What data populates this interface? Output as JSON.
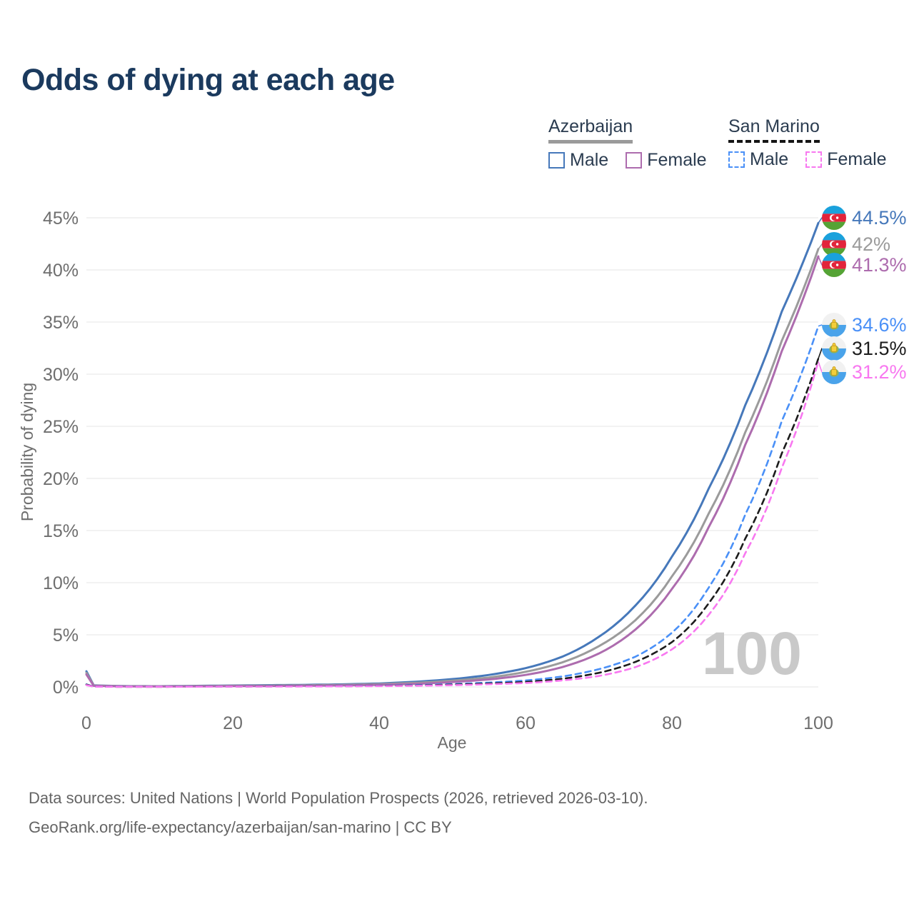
{
  "title": "Odds of dying at each age",
  "watermark": "100",
  "legend": {
    "groups": [
      {
        "label": "Azerbaijan",
        "line_style": "solid",
        "underline_color": "#9a9a9a",
        "items": [
          {
            "label": "Male",
            "color": "#4678ba"
          },
          {
            "label": "Female",
            "color": "#ad6cae"
          }
        ]
      },
      {
        "label": "San Marino",
        "line_style": "dashed",
        "underline_color": "#151515",
        "items": [
          {
            "label": "Male",
            "color": "#4a90f7"
          },
          {
            "label": "Female",
            "color": "#f878f0"
          }
        ]
      }
    ]
  },
  "axes": {
    "x": {
      "title": "Age",
      "tick_values": [
        0,
        20,
        40,
        60,
        80,
        100
      ],
      "tick_labels": [
        "0",
        "20",
        "40",
        "60",
        "80",
        "100"
      ]
    },
    "y": {
      "title": "Probability of dying",
      "tick_values": [
        0,
        5,
        10,
        15,
        20,
        25,
        30,
        35,
        40,
        45
      ],
      "tick_labels": [
        "0%",
        "5%",
        "10%",
        "15%",
        "20%",
        "25%",
        "30%",
        "35%",
        "40%",
        "45%"
      ]
    }
  },
  "end_labels": [
    {
      "value": "44.5%",
      "color": "#4678ba",
      "flag": "azerbaijan-flag",
      "series": "Azerbaijan Male"
    },
    {
      "value": "42%",
      "color": "#9b9b9b",
      "flag": "azerbaijan-flag",
      "series": "Azerbaijan"
    },
    {
      "value": "41.3%",
      "color": "#ad6cae",
      "flag": "azerbaijan-flag",
      "series": "Azerbaijan Female"
    },
    {
      "value": "34.6%",
      "color": "#4a90f7",
      "flag": "san-marino-flag",
      "series": "San Marino Male"
    },
    {
      "value": "31.5%",
      "color": "#1c1c1c",
      "flag": "san-marino-flag",
      "series": "San Marino"
    },
    {
      "value": "31.2%",
      "color": "#f878f0",
      "flag": "san-marino-flag",
      "series": "San Marino Female"
    }
  ],
  "footer": {
    "line1": "Data sources: United Nations | World Population Prospects (2026, retrieved 2026-03-10).",
    "line2": "GeoRank.org/life-expectancy/azerbaijan/san-marino | CC BY"
  },
  "chart_data": {
    "type": "line",
    "title": "Odds of dying at each age",
    "xlabel": "Age",
    "ylabel": "Probability of dying",
    "xlim": [
      0,
      100
    ],
    "ylim": [
      0,
      45
    ],
    "grid": true,
    "legend_position": "top-right",
    "x": [
      0,
      1,
      5,
      10,
      15,
      20,
      25,
      30,
      35,
      40,
      45,
      50,
      55,
      60,
      65,
      70,
      75,
      80,
      85,
      90,
      95,
      100
    ],
    "series": [
      {
        "id": "azerbaijan-male",
        "name": "Azerbaijan Male",
        "color": "#4678ba",
        "dashed": false,
        "end_label": "44.5%",
        "values": [
          1.5,
          0.15,
          0.08,
          0.07,
          0.1,
          0.14,
          0.17,
          0.2,
          0.25,
          0.33,
          0.5,
          0.75,
          1.15,
          1.8,
          2.9,
          4.8,
          7.8,
          12.5,
          19.0,
          27.0,
          36.0,
          44.5
        ]
      },
      {
        "id": "azerbaijan-both",
        "name": "Azerbaijan (both sexes)",
        "color": "#9b9b9b",
        "dashed": false,
        "end_label": "42%",
        "values": [
          1.35,
          0.13,
          0.07,
          0.06,
          0.08,
          0.11,
          0.13,
          0.16,
          0.2,
          0.27,
          0.4,
          0.6,
          0.9,
          1.45,
          2.35,
          3.9,
          6.4,
          10.6,
          16.6,
          24.4,
          33.2,
          42.0
        ]
      },
      {
        "id": "azerbaijan-female",
        "name": "Azerbaijan Female",
        "color": "#ad6cae",
        "dashed": false,
        "end_label": "41.3%",
        "values": [
          1.2,
          0.11,
          0.06,
          0.05,
          0.06,
          0.08,
          0.09,
          0.12,
          0.15,
          0.2,
          0.3,
          0.47,
          0.72,
          1.15,
          1.9,
          3.2,
          5.5,
          9.4,
          15.3,
          23.2,
          32.2,
          41.3
        ]
      },
      {
        "id": "san-marino-male",
        "name": "San Marino Male",
        "color": "#4a90f7",
        "dashed": true,
        "end_label": "34.6%",
        "values": [
          0.25,
          0.03,
          0.02,
          0.02,
          0.03,
          0.05,
          0.06,
          0.07,
          0.09,
          0.12,
          0.18,
          0.28,
          0.42,
          0.62,
          1.0,
          1.7,
          2.9,
          5.2,
          9.5,
          16.5,
          25.5,
          34.6
        ]
      },
      {
        "id": "san-marino-both",
        "name": "San Marino (both sexes)",
        "color": "#1c1c1c",
        "dashed": true,
        "end_label": "31.5%",
        "values": [
          0.22,
          0.025,
          0.015,
          0.015,
          0.025,
          0.04,
          0.05,
          0.06,
          0.07,
          0.1,
          0.14,
          0.22,
          0.33,
          0.48,
          0.78,
          1.35,
          2.4,
          4.3,
          8.0,
          14.2,
          22.4,
          31.5
        ]
      },
      {
        "id": "san-marino-female",
        "name": "San Marino Female",
        "color": "#f878f0",
        "dashed": true,
        "end_label": "31.2%",
        "values": [
          0.18,
          0.02,
          0.012,
          0.012,
          0.02,
          0.03,
          0.035,
          0.045,
          0.06,
          0.08,
          0.11,
          0.17,
          0.26,
          0.38,
          0.62,
          1.05,
          1.9,
          3.6,
          6.9,
          12.8,
          21.0,
          31.2
        ]
      }
    ]
  }
}
